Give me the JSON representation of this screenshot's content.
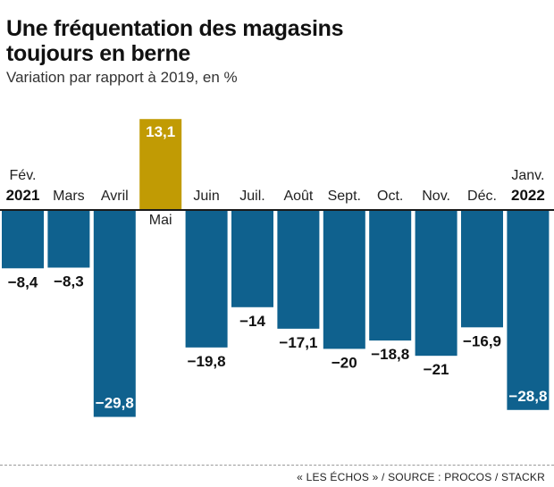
{
  "title_line1": "Une fréquentation des magasins",
  "title_line2": "toujours en berne",
  "subtitle": "Variation par rapport à 2019, en %",
  "source": "« LES ÉCHOS » / SOURCE : PROCOS / STACKR",
  "colors": {
    "negative": "#0f618e",
    "positive": "#c19b04",
    "axis": "#1a1a1a"
  },
  "chart_data": {
    "type": "bar",
    "categories": [
      "Fév.",
      "Mars",
      "Avril",
      "Mai",
      "Juin",
      "Juil.",
      "Août",
      "Sept.",
      "Oct.",
      "Nov.",
      "Déc.",
      "Janv."
    ],
    "year_labels": {
      "0": "2021",
      "11": "2022"
    },
    "values": [
      -8.4,
      -8.3,
      -29.8,
      13.1,
      -19.8,
      -14,
      -17.1,
      -20,
      -18.8,
      -21,
      -16.9,
      -28.8
    ],
    "value_labels": [
      "−8,4",
      "−8,3",
      "−29,8",
      "13,1",
      "−19,8",
      "−14",
      "−17,1",
      "−20",
      "−18,8",
      "−21",
      "−16,9",
      "−28,8"
    ],
    "ylim": [
      -29.8,
      13.1
    ],
    "grid": false,
    "title": "Une fréquentation des magasins toujours en berne",
    "subtitle": "Variation par rapport à 2019, en %"
  }
}
